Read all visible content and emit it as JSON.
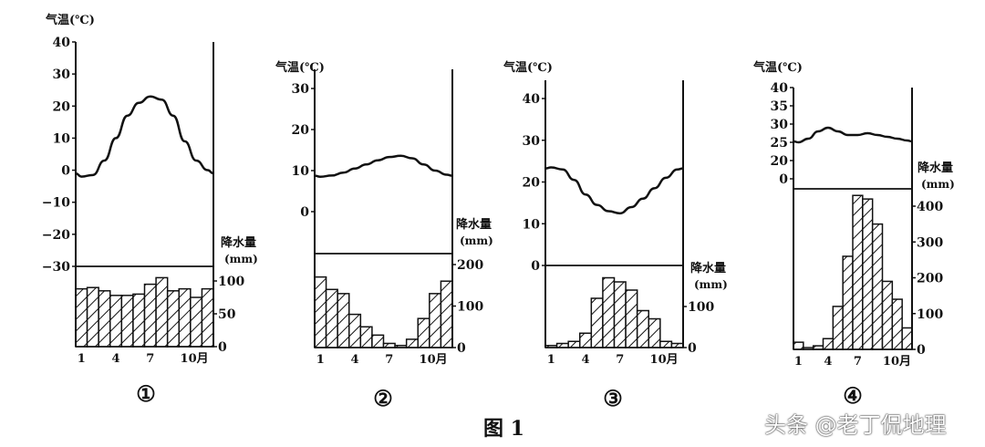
{
  "figure_caption": "图 1",
  "watermark": "头条 @老丁侃地理",
  "colors": {
    "ink": "#111111",
    "background": "#ffffff"
  },
  "chart_data": [
    {
      "type": "bar+line",
      "title": "①",
      "temp_label": "气温(℃)",
      "precip_label": "降水量",
      "precip_unit": "(mm)",
      "temp_ticks": [
        "40",
        "30",
        "20",
        "10",
        "0",
        "−10",
        "−20",
        "−30"
      ],
      "temp_tick_values": [
        40,
        30,
        20,
        10,
        0,
        -10,
        -20,
        -30
      ],
      "precip_ticks": [
        "100",
        "50",
        "0"
      ],
      "precip_tick_values": [
        100,
        50,
        0
      ],
      "month_labels": [
        "1",
        "4",
        "7",
        "10月"
      ],
      "temperature": [
        -2,
        -1.5,
        3,
        10,
        17,
        21,
        23,
        22,
        17,
        9,
        3,
        0
      ],
      "precipitation": [
        88,
        90,
        85,
        78,
        78,
        80,
        95,
        105,
        85,
        88,
        75,
        88
      ]
    },
    {
      "type": "bar+line",
      "title": "②",
      "temp_label": "气温(℃)",
      "precip_label": "降水量",
      "precip_unit": "(mm)",
      "temp_ticks": [
        "30",
        "20",
        "10",
        "0"
      ],
      "temp_tick_values": [
        30,
        20,
        10,
        0
      ],
      "precip_ticks": [
        "200",
        "100",
        "0"
      ],
      "precip_tick_values": [
        200,
        100,
        0
      ],
      "month_labels": [
        "1",
        "4",
        "7",
        "10月"
      ],
      "temperature": [
        8.5,
        8.8,
        9.5,
        10.5,
        11.5,
        12.5,
        13.3,
        13.6,
        13,
        11.5,
        10,
        9
      ],
      "precipitation": [
        170,
        140,
        130,
        80,
        50,
        30,
        10,
        5,
        20,
        70,
        130,
        160
      ]
    },
    {
      "type": "bar+line",
      "title": "③",
      "temp_label": "气温(℃)",
      "precip_label": "降水量",
      "precip_unit": "(mm)",
      "temp_ticks": [
        "40",
        "30",
        "20",
        "10",
        "0"
      ],
      "temp_tick_values": [
        40,
        30,
        20,
        10,
        0
      ],
      "precip_ticks": [
        "100",
        "0"
      ],
      "precip_tick_values": [
        100,
        0
      ],
      "month_labels": [
        "1",
        "4",
        "7",
        "10月"
      ],
      "temperature": [
        23.5,
        23,
        20.5,
        17,
        14.5,
        13,
        12.5,
        14,
        16,
        18.5,
        21,
        23
      ],
      "precipitation": [
        5,
        10,
        15,
        35,
        120,
        170,
        160,
        140,
        90,
        70,
        15,
        10
      ]
    },
    {
      "type": "bar+line",
      "title": "④",
      "temp_label": "气温(℃)",
      "precip_label": "降水量",
      "precip_unit": "(mm)",
      "temp_ticks": [
        "40",
        "35",
        "30",
        "25",
        "20",
        "0"
      ],
      "temp_tick_values": [
        40,
        35,
        30,
        25,
        20,
        0
      ],
      "precip_ticks": [
        "400",
        "300",
        "200",
        "100",
        "0"
      ],
      "precip_tick_values": [
        400,
        300,
        200,
        100,
        0
      ],
      "month_labels": [
        "1",
        "4",
        "7",
        "10月"
      ],
      "temperature": [
        25,
        26,
        28,
        29,
        28,
        27,
        27,
        27.5,
        27,
        26.5,
        26,
        25.5
      ],
      "precipitation": [
        20,
        5,
        10,
        30,
        120,
        260,
        430,
        420,
        350,
        190,
        140,
        60
      ]
    }
  ]
}
